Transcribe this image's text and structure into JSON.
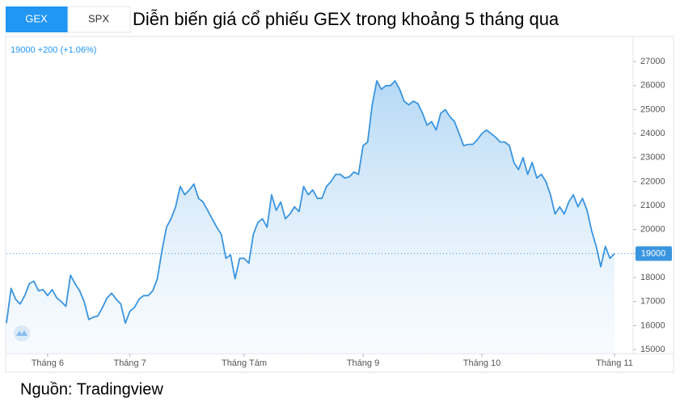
{
  "tabs": [
    "GEX",
    "SPX"
  ],
  "chart_data": {
    "type": "area",
    "title": "Diễn biến giá cổ phiếu GEX trong khoảng 5 tháng qua",
    "legend_text": "19000 +200 (+1.06%)",
    "source": "Nguồn: Tradingview",
    "categories": [
      null,
      null,
      null,
      null,
      null,
      null,
      null,
      null,
      null,
      "Tháng 6",
      null,
      null,
      null,
      null,
      null,
      null,
      null,
      null,
      null,
      null,
      null,
      null,
      null,
      null,
      null,
      null,
      null,
      "Tháng 7",
      null,
      null,
      null,
      null,
      null,
      null,
      null,
      null,
      null,
      null,
      null,
      null,
      null,
      null,
      null,
      null,
      null,
      null,
      null,
      null,
      null,
      null,
      null,
      null,
      "Tháng Tám",
      null,
      null,
      null,
      null,
      null,
      null,
      null,
      null,
      null,
      null,
      null,
      null,
      null,
      null,
      null,
      null,
      null,
      null,
      null,
      null,
      null,
      null,
      null,
      null,
      null,
      "Tháng 9",
      null,
      null,
      null,
      null,
      null,
      null,
      null,
      null,
      null,
      null,
      null,
      null,
      null,
      null,
      null,
      null,
      null,
      null,
      null,
      null,
      null,
      null,
      null,
      null,
      null,
      "Tháng 10",
      null,
      null,
      null,
      null,
      null,
      null,
      null,
      null,
      null,
      null,
      null,
      null,
      null,
      null,
      null,
      null,
      null,
      null,
      null,
      null,
      null,
      null,
      null,
      null,
      null,
      null,
      null,
      null,
      "Tháng 11"
    ],
    "series": [
      {
        "name": "GEX",
        "color": "#3a95e0",
        "values": [
          16100,
          17550,
          17100,
          16900,
          17250,
          17750,
          17850,
          17450,
          17500,
          17250,
          17500,
          17150,
          17000,
          16800,
          18100,
          17750,
          17450,
          17000,
          16250,
          16350,
          16400,
          16750,
          17150,
          17350,
          17100,
          16900,
          16100,
          16600,
          16750,
          17100,
          17250,
          17250,
          17450,
          17950,
          19100,
          20100,
          20450,
          20950,
          21800,
          21450,
          21650,
          21900,
          21300,
          21150,
          20800,
          20450,
          20100,
          19800,
          18800,
          18950,
          17950,
          18800,
          18800,
          18600,
          19800,
          20300,
          20450,
          20100,
          21450,
          20800,
          21150,
          20450,
          20650,
          20950,
          20750,
          21800,
          21450,
          21650,
          21300,
          21300,
          21800,
          22000,
          22300,
          22300,
          22150,
          22200,
          22400,
          22300,
          23500,
          23650,
          25200,
          26200,
          25850,
          26000,
          26000,
          26200,
          25850,
          25350,
          25200,
          25350,
          25250,
          24850,
          24350,
          24500,
          24150,
          24850,
          25000,
          24700,
          24500,
          24000,
          23500,
          23550,
          23550,
          23750,
          24000,
          24150,
          24000,
          23850,
          23650,
          23650,
          23500,
          22800,
          22500,
          23000,
          22300,
          22800,
          22150,
          22300,
          22000,
          21450,
          20650,
          20950,
          20650,
          21150,
          21450,
          20950,
          21300,
          20800,
          19950,
          19300,
          18450,
          19300,
          18800,
          19000
        ]
      }
    ],
    "price_line": 19000,
    "ylim": [
      15000,
      27950
    ],
    "yticks": [
      15000,
      16000,
      17000,
      18000,
      19000,
      20000,
      21000,
      22000,
      23000,
      24000,
      25000,
      26000,
      27000
    ]
  }
}
